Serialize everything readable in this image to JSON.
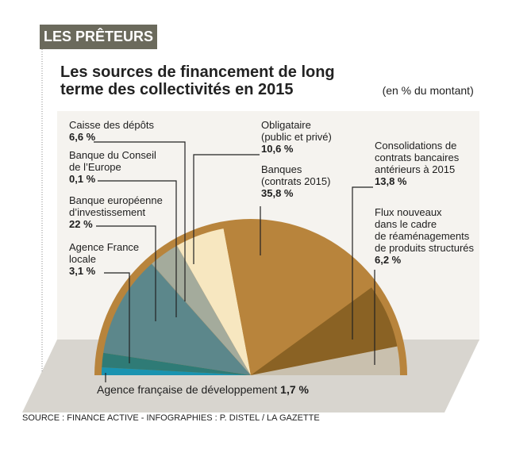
{
  "header": {
    "tag": "LES PRÊTEURS"
  },
  "chart_data": {
    "type": "pie",
    "variant": "semicircle",
    "title": "Les sources de financement de long terme des collectivités en 2015",
    "subtitle": "(en % du montant)",
    "unit": "%",
    "slices": [
      {
        "label": "Agence française de développement",
        "value": 1.7,
        "display": "1,7 %",
        "color": "#1a93b0"
      },
      {
        "label": "Agence France locale",
        "value": 3.1,
        "display": "3,1 %",
        "color": "#2f7b76"
      },
      {
        "label": "Banque européenne d'investissement",
        "value": 22,
        "display": "22 %",
        "color": "#5c878b"
      },
      {
        "label": "Banque du Conseil de l'Europe",
        "value": 0.1,
        "display": "0,1 %",
        "color": "#8a9d98"
      },
      {
        "label": "Caisse des dépôts",
        "value": 6.6,
        "display": "6,6 %",
        "color": "#a4ab9c"
      },
      {
        "label": "Obligataire (public et privé)",
        "value": 10.6,
        "display": "10,6 %",
        "color": "#f7e7c0"
      },
      {
        "label": "Banques (contrats 2015)",
        "value": 35.8,
        "display": "35,8 %",
        "color": "#b8843c"
      },
      {
        "label": "Consolidations de contrats bancaires antérieurs à 2015",
        "value": 13.8,
        "display": "13,8 %",
        "color": "#8a6224"
      },
      {
        "label": "Flux nouveaux dans le cadre de réaménagements de produits structurés",
        "value": 6.2,
        "display": "6,2 %",
        "color": "#c9c0ae"
      }
    ],
    "labels": {
      "afd": [
        "Agence française de développement",
        "1,7 %"
      ],
      "afl": [
        "Agence France",
        "locale",
        "3,1 %"
      ],
      "bei": [
        "Banque européenne",
        "d’investissement",
        "22 %"
      ],
      "bce": [
        "Banque du Conseil",
        "de l’Europe",
        "0,1 %"
      ],
      "cdc": [
        "Caisse des dépôts",
        "6,6 %"
      ],
      "obl": [
        "Obligataire",
        "(public et privé)",
        "10,6 %"
      ],
      "ban": [
        "Banques",
        "(contrats 2015)",
        "35,8 %"
      ],
      "con": [
        "Consolidations de",
        "contrats bancaires",
        "antérieurs à 2015",
        "13,8 %"
      ],
      "flux": [
        "Flux nouveaux",
        "dans le cadre",
        "de réaménagements",
        "de produits structurés",
        "6,2 %"
      ]
    },
    "colors": {
      "rim": "#b8843c",
      "floor": "#d8d5cf",
      "wall": "#f5f3ef",
      "tag": "#6b6a5c"
    }
  },
  "source": "SOURCE : FINANCE ACTIVE - INFOGRAPHIES : P. DISTEL / LA GAZETTE"
}
